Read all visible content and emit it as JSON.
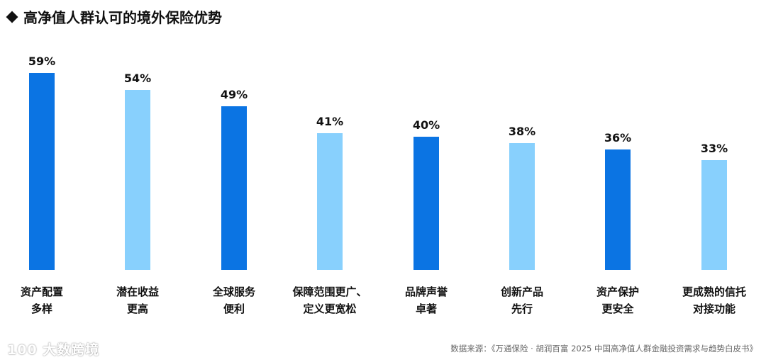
{
  "title": "高净值人群认可的境外保险优势",
  "colors": {
    "dark_blue": "#0B74E3",
    "light_blue": "#88D0FD"
  },
  "watermark": "100 大数跨境",
  "source": "数据来源：《万通保险 · 胡润百富 2025 中国高净值人群金融投资需求与趋势白皮书》",
  "chart_data": {
    "type": "bar",
    "title": "高净值人群认可的境外保险优势",
    "xlabel": "",
    "ylabel": "",
    "ylim": [
      0,
      60
    ],
    "grid": false,
    "legend": null,
    "categories": [
      "资产配置多样",
      "潜在收益更高",
      "全球服务便利",
      "保障范围更广、定义更宽松",
      "品牌声誉卓著",
      "创新产品先行",
      "资产保护更安全",
      "更成熟的信托对接功能"
    ],
    "values": [
      59,
      54,
      49,
      41,
      40,
      38,
      36,
      33
    ],
    "value_labels": [
      "59%",
      "54%",
      "49%",
      "41%",
      "40%",
      "38%",
      "36%",
      "33%"
    ],
    "category_lines": [
      [
        "资产配置",
        "多样"
      ],
      [
        "潜在收益",
        "更高"
      ],
      [
        "全球服务",
        "便利"
      ],
      [
        "保障范围更广、",
        "定义更宽松"
      ],
      [
        "品牌声誉",
        "卓著"
      ],
      [
        "创新产品",
        "先行"
      ],
      [
        "资产保护",
        "更安全"
      ],
      [
        "更成熟的信托",
        "对接功能"
      ]
    ],
    "bar_colors": [
      "#0B74E3",
      "#88D0FD",
      "#0B74E3",
      "#88D0FD",
      "#0B74E3",
      "#88D0FD",
      "#0B74E3",
      "#88D0FD"
    ]
  }
}
